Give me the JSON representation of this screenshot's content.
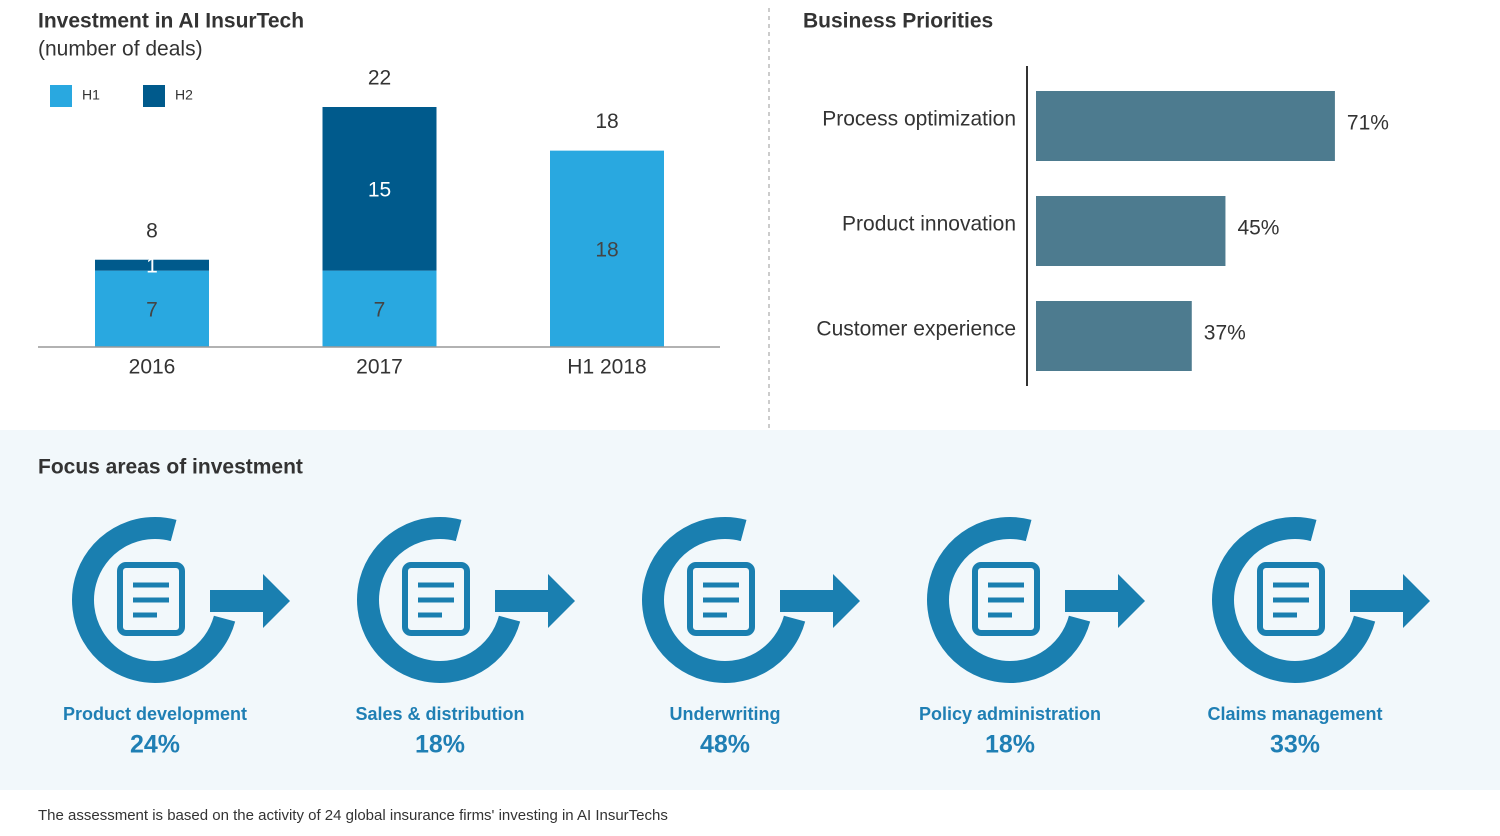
{
  "chart_data": [
    {
      "type": "stacked_bar",
      "title": "Investment in AI InsurTech",
      "subtitle": "(number of deals)",
      "categories": [
        "2016",
        "2017",
        "H1 2018"
      ],
      "series": [
        {
          "name": "H1",
          "color": "#29a8e0",
          "values": [
            7,
            7,
            18
          ]
        },
        {
          "name": "H2",
          "color": "#005a8c",
          "values": [
            1,
            15,
            null
          ]
        }
      ],
      "totals": [
        8,
        22,
        18
      ],
      "ylim": [
        0,
        22
      ],
      "legend": "top-left"
    },
    {
      "type": "hbar",
      "title": "Business Priorities",
      "categories": [
        "Process optimization",
        "Product innovation",
        "Customer experience"
      ],
      "values": [
        71,
        45,
        37
      ],
      "value_labels": [
        "71%",
        "45%",
        "37%"
      ],
      "color": "#4d7b8f",
      "xlim": [
        0,
        100
      ]
    }
  ],
  "focus": {
    "title": "Focus areas of investment",
    "items": [
      {
        "name": "Product development",
        "value": "24%"
      },
      {
        "name": "Sales & distribution",
        "value": "18%"
      },
      {
        "name": "Underwriting",
        "value": "48%"
      },
      {
        "name": "Policy administration",
        "value": "18%"
      },
      {
        "name": "Claims management",
        "value": "33%"
      }
    ]
  },
  "footnote": "The assessment  is based  on the activity of 24 global  insurance firms' investing  in AI InsurTechs"
}
